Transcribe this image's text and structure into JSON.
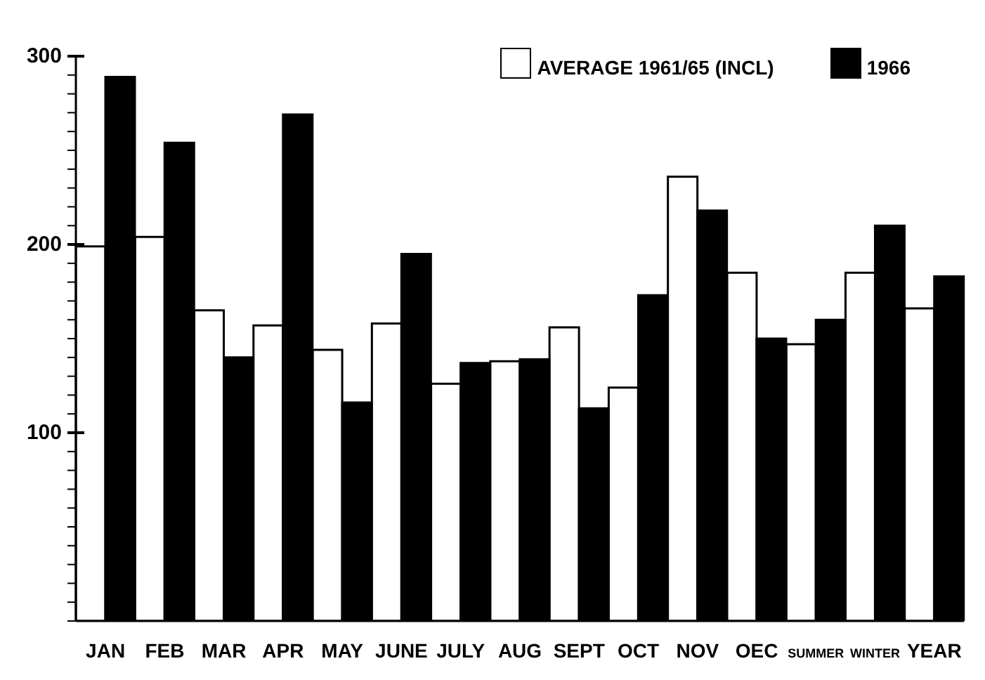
{
  "chart_data": {
    "type": "bar",
    "categories": [
      "JAN",
      "FEB",
      "MAR",
      "APR",
      "MAY",
      "JUNE",
      "JULY",
      "AUG",
      "SEPT",
      "OCT",
      "NOV",
      "OEC",
      "SUMMER",
      "WINTER",
      "YEAR"
    ],
    "series": [
      {
        "name": "AVERAGE 1961/65 (INCL)",
        "color": "#ffffff",
        "values": [
          199,
          204,
          165,
          157,
          144,
          158,
          126,
          138,
          156,
          124,
          236,
          185,
          147,
          185,
          166
        ]
      },
      {
        "name": "1966",
        "color": "#000000",
        "values": [
          289,
          254,
          140,
          269,
          116,
          195,
          137,
          139,
          113,
          173,
          218,
          150,
          160,
          210,
          183
        ]
      }
    ],
    "ylim": [
      0,
      300
    ],
    "yticks": [
      {
        "value": 0,
        "label": null
      },
      {
        "value": 10,
        "label": null
      },
      {
        "value": 20,
        "label": null
      },
      {
        "value": 30,
        "label": null
      },
      {
        "value": 40,
        "label": null
      },
      {
        "value": 50,
        "label": null
      },
      {
        "value": 60,
        "label": null
      },
      {
        "value": 70,
        "label": null
      },
      {
        "value": 80,
        "label": null
      },
      {
        "value": 90,
        "label": null
      },
      100,
      {
        "value": 110,
        "label": null
      },
      {
        "value": 120,
        "label": null
      },
      {
        "value": 130,
        "label": null
      },
      {
        "value": 140,
        "label": null
      },
      {
        "value": 150,
        "label": null
      },
      {
        "value": 160,
        "label": null
      },
      {
        "value": 170,
        "label": null
      },
      {
        "value": 180,
        "label": null
      },
      {
        "value": 190,
        "label": null
      },
      200,
      {
        "value": 210,
        "label": null
      },
      {
        "value": 220,
        "label": null
      },
      {
        "value": 230,
        "label": null
      },
      {
        "value": 240,
        "label": null
      },
      {
        "value": 250,
        "label": null
      },
      {
        "value": 260,
        "label": null
      },
      {
        "value": 270,
        "label": null
      },
      {
        "value": 280,
        "label": null
      },
      {
        "value": 290,
        "label": null
      },
      300
    ],
    "grid": false,
    "legend": "top right"
  }
}
